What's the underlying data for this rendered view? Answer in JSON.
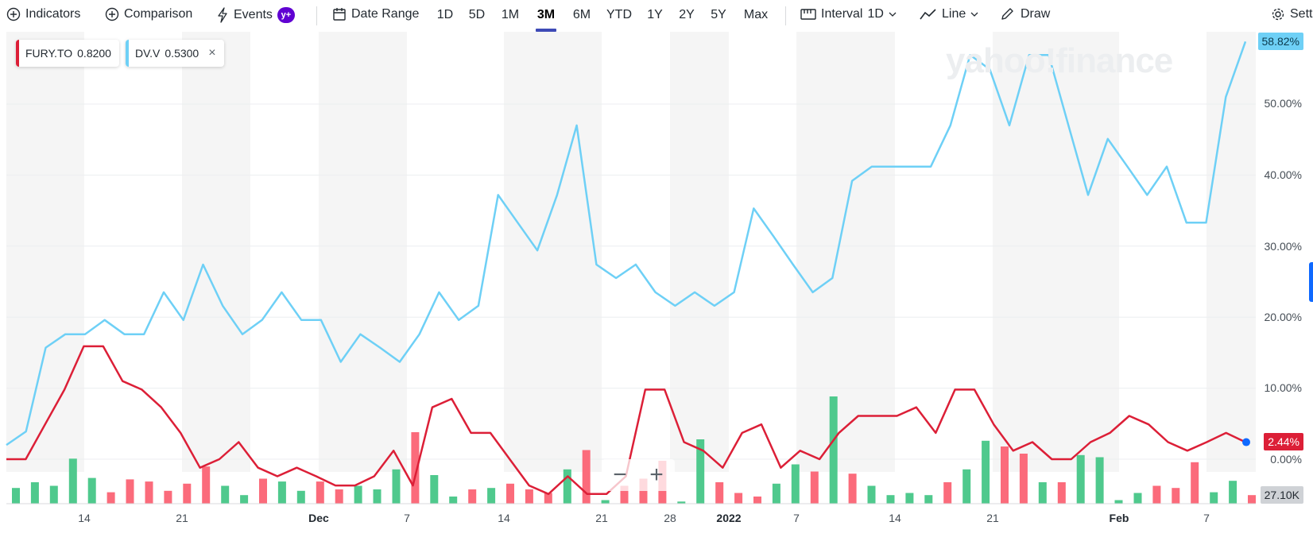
{
  "toolbar": {
    "indicators": "Indicators",
    "comparison": "Comparison",
    "events": "Events",
    "events_badge": "y+",
    "date_range": "Date Range",
    "ranges": [
      "1D",
      "5D",
      "1M",
      "3M",
      "6M",
      "YTD",
      "1Y",
      "2Y",
      "5Y",
      "Max"
    ],
    "active_range": "3M",
    "interval_label": "Interval",
    "interval_value": "1D",
    "line": "Line",
    "draw": "Draw",
    "settings": "Sett"
  },
  "legend": [
    {
      "symbol": "FURY.TO",
      "value": "0.8200",
      "color": "#dc1f37"
    },
    {
      "symbol": "DV.V",
      "value": "0.5300",
      "color": "#6ed0f6",
      "close": "×"
    }
  ],
  "watermark": "yahoo!finance",
  "yaxis": [
    "50.00%",
    "40.00%",
    "30.00%",
    "20.00%",
    "10.00%",
    "0.00%"
  ],
  "xaxis": [
    {
      "label": "14",
      "bold": false
    },
    {
      "label": "21",
      "bold": false
    },
    {
      "label": "Dec",
      "bold": true
    },
    {
      "label": "7",
      "bold": false
    },
    {
      "label": "14",
      "bold": false
    },
    {
      "label": "21",
      "bold": false
    },
    {
      "label": "28",
      "bold": false
    },
    {
      "label": "2022",
      "bold": true
    },
    {
      "label": "7",
      "bold": false
    },
    {
      "label": "14",
      "bold": false
    },
    {
      "label": "21",
      "bold": false
    },
    {
      "label": "Feb",
      "bold": true
    },
    {
      "label": "7",
      "bold": false
    }
  ],
  "flags": {
    "dv": "58.82%",
    "fury": "2.44%",
    "volume": "27.10K"
  },
  "zoom": {
    "minus": "−",
    "plus": "+"
  },
  "colors": {
    "dv": "#6ed0f6",
    "fury": "#dc1f37",
    "vol_up": "#4fc98d",
    "vol_down": "#fb6b7b",
    "weekend": "#f5f5f5"
  },
  "chart_data": {
    "type": "line",
    "y_unit": "%",
    "ylim": [
      -6.5,
      60
    ],
    "series": [
      {
        "name": "DV.V",
        "color": "#6ed0f6",
        "values": [
          2,
          3.9,
          15.7,
          17.6,
          17.6,
          19.6,
          17.6,
          17.6,
          23.5,
          19.6,
          27.4,
          21.6,
          17.6,
          19.6,
          23.5,
          19.6,
          19.6,
          13.7,
          17.6,
          15.7,
          13.7,
          17.6,
          23.5,
          19.6,
          21.6,
          37.2,
          33.3,
          29.4,
          37.2,
          47.0,
          27.4,
          25.5,
          27.4,
          23.5,
          21.6,
          23.5,
          21.6,
          23.5,
          35.3,
          31.4,
          27.4,
          23.5,
          25.5,
          39.2,
          41.2,
          41.2,
          41.2,
          41.2,
          47.0,
          56.9,
          54.9,
          47.0,
          56.9,
          56.9,
          47.0,
          37.2,
          45.1,
          41.2,
          37.2,
          41.2,
          33.3,
          33.3,
          51.0,
          58.8
        ]
      },
      {
        "name": "FURY.TO",
        "color": "#dc1f37",
        "values": [
          0,
          0,
          4.9,
          9.8,
          15.9,
          15.9,
          11.0,
          9.8,
          7.3,
          3.7,
          -1.2,
          0,
          2.4,
          -1.2,
          -2.4,
          -1.2,
          -2.4,
          -3.7,
          -3.7,
          -2.4,
          1.2,
          -3.7,
          7.3,
          8.5,
          3.7,
          3.7,
          0,
          -3.7,
          -4.9,
          -2.4,
          -4.9,
          -4.9,
          -2.4,
          9.8,
          9.8,
          2.4,
          1.2,
          -1.2,
          3.7,
          4.9,
          -1.2,
          1.2,
          0,
          3.7,
          6.1,
          6.1,
          6.1,
          7.3,
          3.7,
          9.8,
          9.8,
          4.9,
          1.2,
          2.4,
          0,
          0,
          2.4,
          3.7,
          6.1,
          4.9,
          2.4,
          1.2,
          2.4,
          3.7,
          2.4
        ]
      }
    ],
    "volume_bars": {
      "values": [
        22,
        30,
        25,
        63,
        36,
        16,
        34,
        31,
        18,
        28,
        52,
        25,
        12,
        35,
        31,
        18,
        31,
        20,
        25,
        20,
        48,
        100,
        40,
        10,
        20,
        22,
        28,
        20,
        15,
        48,
        75,
        5,
        25,
        35,
        60,
        3,
        90,
        30,
        15,
        10,
        28,
        55,
        45,
        150,
        42,
        25,
        12,
        15,
        12,
        30,
        48,
        88,
        80,
        70,
        30,
        30,
        68,
        65,
        5,
        15,
        25,
        22,
        58,
        16,
        32,
        12
      ],
      "colors": [
        "up",
        "up",
        "up",
        "up",
        "up",
        "down",
        "down",
        "down",
        "down",
        "down",
        "down",
        "up",
        "up",
        "down",
        "up",
        "up",
        "down",
        "down",
        "up",
        "up",
        "up",
        "down",
        "up",
        "up",
        "down",
        "up",
        "down",
        "down",
        "down",
        "up",
        "down",
        "up",
        "down",
        "down",
        "down",
        "up",
        "up",
        "down",
        "down",
        "down",
        "up",
        "up",
        "down",
        "up",
        "down",
        "up",
        "up",
        "up",
        "up",
        "down",
        "up",
        "up",
        "down",
        "down",
        "up",
        "down",
        "up",
        "up",
        "up",
        "up",
        "down",
        "down",
        "down",
        "up",
        "up",
        "down"
      ]
    }
  }
}
